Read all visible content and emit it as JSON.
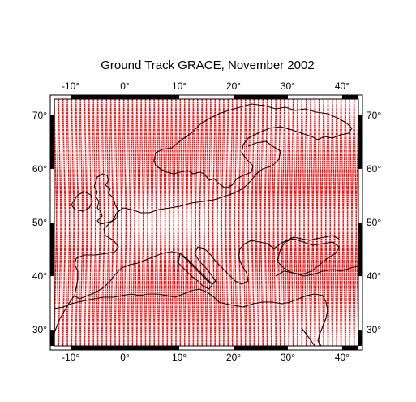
{
  "map": {
    "title": "Ground Track GRACE, November 2002",
    "lon_range": [
      -13,
      43
    ],
    "lat_range": [
      27,
      73
    ],
    "lon_ticks": [
      {
        "value": -10,
        "label": "-10°"
      },
      {
        "value": 0,
        "label": "0°"
      },
      {
        "value": 10,
        "label": "10°"
      },
      {
        "value": 20,
        "label": "20°"
      },
      {
        "value": 30,
        "label": "30°"
      },
      {
        "value": 40,
        "label": "40°"
      }
    ],
    "lat_ticks": [
      {
        "value": 70,
        "label": "70°"
      },
      {
        "value": 60,
        "label": "60°"
      },
      {
        "value": 50,
        "label": "50°"
      },
      {
        "value": 40,
        "label": "40°"
      },
      {
        "value": 30,
        "label": "30°"
      }
    ],
    "track_color": "#ff0000",
    "coast_color": "#000000",
    "frame_color": "#000000",
    "track_crossings_per_degree": 1.25
  }
}
